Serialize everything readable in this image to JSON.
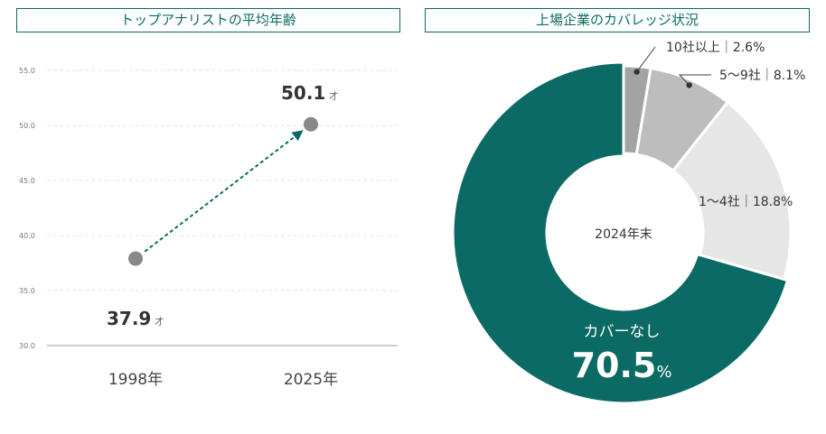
{
  "colors": {
    "accent": "#0b6b64",
    "marker": "#888888",
    "slice_light": "#e6e6e6",
    "slice_mid": "#bdbdbd",
    "slice_dark": "#a3a3a3"
  },
  "panels": {
    "left_title": "トップアナリストの平均年齢",
    "right_title": "上場企業のカバレッジ状況"
  },
  "chart_data": [
    {
      "type": "line",
      "title": "トップアナリストの平均年齢",
      "categories": [
        "1998年",
        "2025年"
      ],
      "series": [
        {
          "values": [
            37.9,
            50.1
          ]
        }
      ],
      "unit": "才",
      "value_labels": [
        "37.9",
        "50.1"
      ],
      "yticks": [
        "30.0",
        "35.0",
        "40.0",
        "45.0",
        "50.0",
        "55.0"
      ],
      "ylim": [
        30,
        55
      ],
      "grid": true
    },
    {
      "type": "pie",
      "title": "上場企業のカバレッジ状況",
      "center_label": "2024年末",
      "slices": [
        {
          "label": "10社以上",
          "value": 2.6,
          "display": "2.6%",
          "color": "#a3a3a3"
        },
        {
          "label": "5〜9社",
          "value": 8.1,
          "display": "8.1%",
          "color": "#bdbdbd"
        },
        {
          "label": "1〜4社",
          "value": 18.8,
          "display": "18.8%",
          "color": "#e6e6e6"
        },
        {
          "label": "カバーなし",
          "value": 70.5,
          "display": "70.5",
          "unit": "%",
          "color": "#0b6b64"
        }
      ]
    }
  ]
}
